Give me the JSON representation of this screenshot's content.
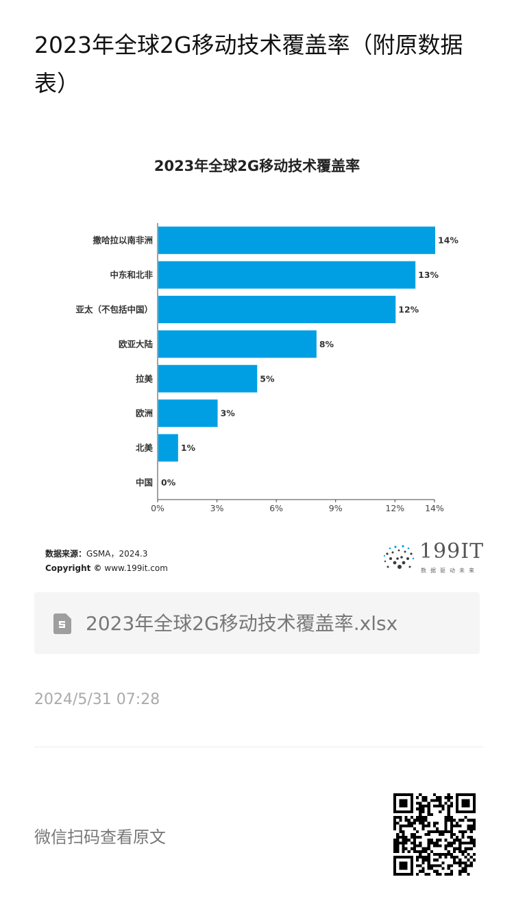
{
  "article": {
    "title": "2023年全球2G移动技术覆盖率（附原数据表）",
    "timestamp": "2024/5/31 07:28",
    "scan_text": "微信扫码查看原文"
  },
  "attachment": {
    "file_name": "2023年全球2G移动技术覆盖率.xlsx",
    "icon": "spreadsheet-file-icon"
  },
  "source": {
    "label": "数据来源：",
    "text": "GSMA，2024.3",
    "copyright_label": "Copyright ©",
    "copyright_text": "www.199it.com"
  },
  "logo": {
    "name": "199IT",
    "tagline": "数据驱动未来"
  },
  "colors": {
    "bar": "#009fe3",
    "axis": "#444444"
  },
  "chart_data": {
    "type": "bar",
    "orientation": "horizontal",
    "title": "2023年全球2G移动技术覆盖率",
    "categories": [
      "撒哈拉以南非洲",
      "中东和北非",
      "亚太（不包括中国）",
      "欧亚大陆",
      "拉美",
      "欧洲",
      "北美",
      "中国"
    ],
    "values": [
      14,
      13,
      12,
      8,
      5,
      3,
      1,
      0
    ],
    "value_labels": [
      "14%",
      "13%",
      "12%",
      "8%",
      "5%",
      "3%",
      "1%",
      "0%"
    ],
    "xticks": [
      "0%",
      "3%",
      "6%",
      "9%",
      "12%",
      "14%"
    ],
    "xtick_values": [
      0,
      3,
      6,
      9,
      12,
      14
    ],
    "xlim": [
      0,
      14
    ],
    "grid": false,
    "legend": "none"
  }
}
